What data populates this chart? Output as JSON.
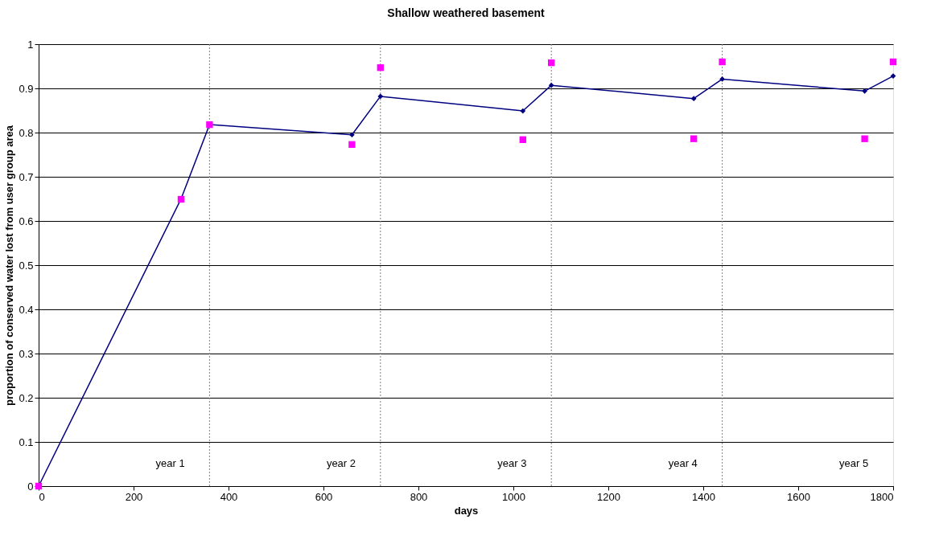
{
  "chart_data": {
    "type": "line",
    "title": "Shallow weathered basement",
    "xlabel": "days",
    "ylabel": "proportion of conserved water lost from user group area",
    "xlim": [
      0,
      1800
    ],
    "xticks": [
      0,
      200,
      400,
      600,
      800,
      1000,
      1200,
      1400,
      1600,
      1800
    ],
    "ylim": [
      0,
      1
    ],
    "yticks": [
      0,
      0.1,
      0.2,
      0.3,
      0.4,
      0.5,
      0.6,
      0.7,
      0.8,
      0.9,
      1
    ],
    "grid": "y",
    "series": [
      {
        "marker": "diamond",
        "color": "#000080",
        "x": [
          0,
          300,
          360,
          660,
          720,
          1020,
          1080,
          1380,
          1440,
          1740,
          1800
        ],
        "values": [
          0,
          0.65,
          0.818,
          0.795,
          0.882,
          0.849,
          0.907,
          0.877,
          0.921,
          0.894,
          0.928
        ]
      },
      {
        "type": "scatter",
        "marker": "square",
        "color": "#ff00ff",
        "x": [
          0,
          300,
          360,
          660,
          720,
          1020,
          1080,
          1380,
          1440,
          1740,
          1800
        ],
        "values": [
          0,
          0.649,
          0.818,
          0.773,
          0.947,
          0.784,
          0.958,
          0.786,
          0.96,
          0.786,
          0.96
        ]
      }
    ],
    "ref_lines": [
      {
        "axis": "x",
        "value": 360,
        "color": "#808080",
        "line_style": "dotted"
      },
      {
        "axis": "x",
        "value": 720,
        "color": "#808080",
        "line_style": "dotted"
      },
      {
        "axis": "x",
        "value": 1080,
        "color": "#808080",
        "line_style": "dotted"
      },
      {
        "axis": "x",
        "value": 1440,
        "color": "#808080",
        "line_style": "dotted"
      }
    ],
    "annotations": [
      "year 1",
      "year 2",
      "year 3",
      "year 4",
      "year 5"
    ]
  }
}
